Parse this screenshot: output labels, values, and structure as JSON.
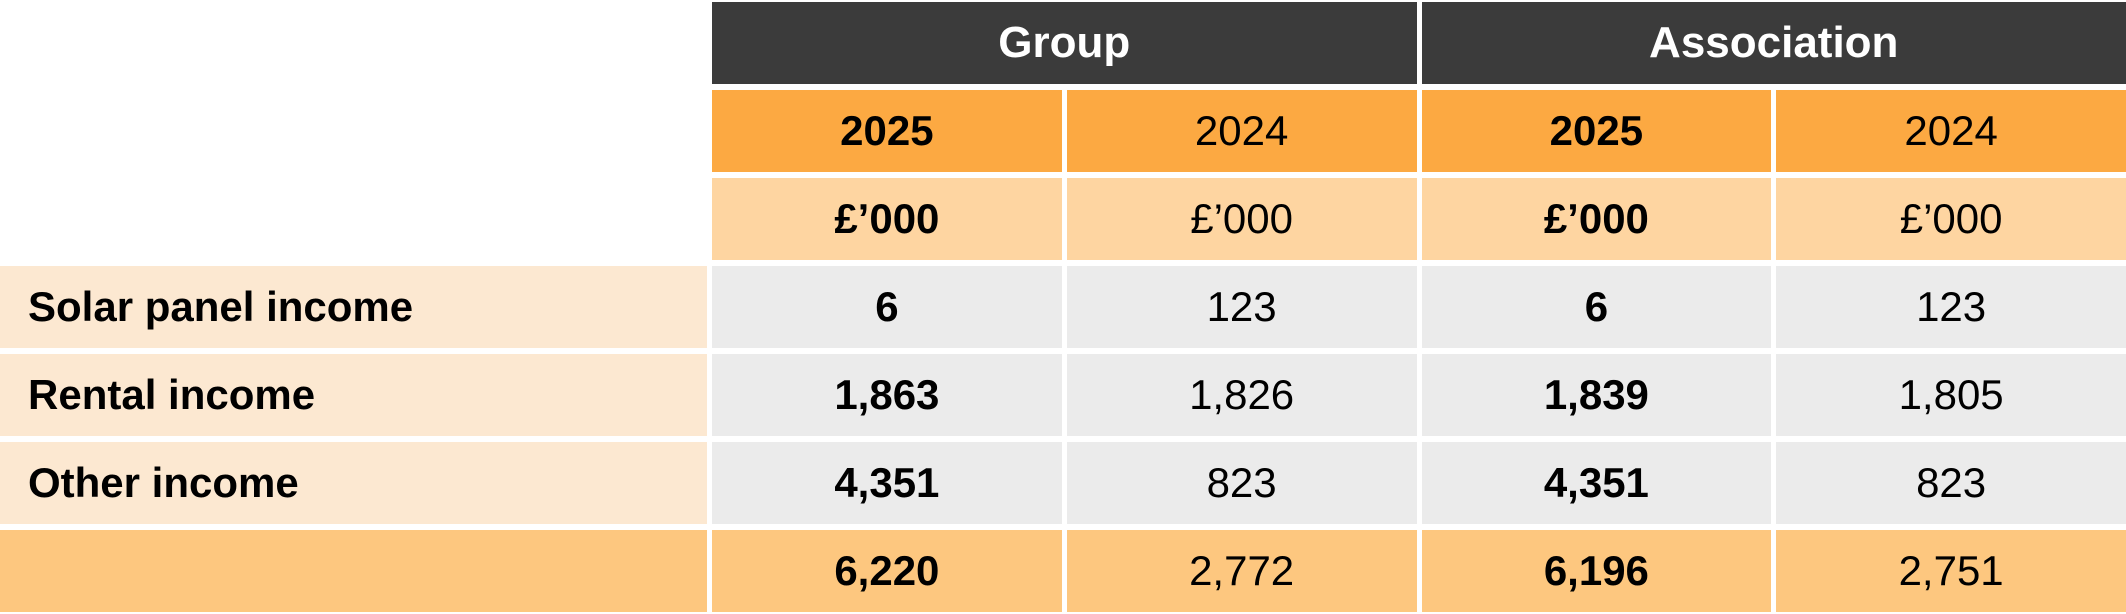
{
  "table": {
    "sections": [
      {
        "label": "Group"
      },
      {
        "label": "Association"
      }
    ],
    "years": [
      "2025",
      "2024",
      "2025",
      "2024"
    ],
    "units": [
      "£’000",
      "£’000",
      "£’000",
      "£’000"
    ],
    "rows": [
      {
        "label": "Solar panel income",
        "values": [
          "6",
          "123",
          "6",
          "123"
        ]
      },
      {
        "label": "Rental income",
        "values": [
          "1,863",
          "1,826",
          "1,839",
          "1,805"
        ]
      },
      {
        "label": "Other income",
        "values": [
          "4,351",
          "823",
          "4,351",
          "823"
        ]
      }
    ],
    "total": {
      "values": [
        "6,220",
        "2,772",
        "6,196",
        "2,751"
      ]
    }
  },
  "colors": {
    "header_bg": "#3B3B3B",
    "header_text": "#FFFFFF",
    "year_bg": "#FCA942",
    "units_bg": "#FED5A1",
    "label_bg": "#FCE8D1",
    "data_bg": "#EBEBEB",
    "total_bg": "#FDC77F",
    "text": "#000000",
    "background": "#FFFFFF"
  }
}
